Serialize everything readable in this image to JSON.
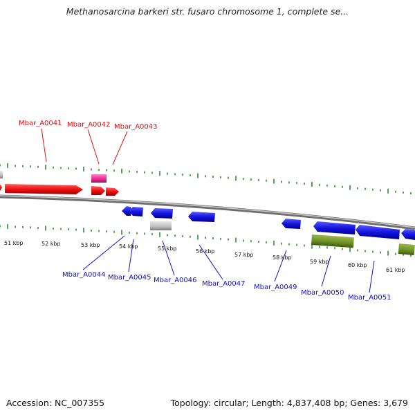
{
  "title": "Methanosarcina barkeri str. fusaro chromosome 1, complete se...",
  "accession": "Accession: NC_007355",
  "summary": "Topology: circular; Length: 4,837,408 bp; Genes: 3,679",
  "scale_labels": [
    "51 kbp",
    "52 kbp",
    "53 kbp",
    "54 kbp",
    "55 kbp",
    "56 kbp",
    "57 kbp",
    "58 kbp",
    "59 kbp",
    "60 kbp",
    "61 kbp"
  ],
  "genes_top": [
    {
      "name": "Mbar_A0041",
      "color": "#e01010"
    },
    {
      "name": "Mbar_A0042",
      "color": "#e01010"
    },
    {
      "name": "Mbar_A0043",
      "color": "#e01010"
    }
  ],
  "genes_bottom": [
    {
      "name": "Mbar_A0044",
      "color": "#1010c8"
    },
    {
      "name": "Mbar_A0045",
      "color": "#1010c8"
    },
    {
      "name": "Mbar_A0046",
      "color": "#1010c8"
    },
    {
      "name": "Mbar_A0047",
      "color": "#1010c8"
    },
    {
      "name": "Mbar_A0049",
      "color": "#1010c8"
    },
    {
      "name": "Mbar_A0050",
      "color": "#1010c8"
    },
    {
      "name": "Mbar_A0051",
      "color": "#1010c8"
    }
  ],
  "colors": {
    "backbone": "#8a8a8a",
    "tick": "#1a8a1a",
    "forward_gene": "#ee1111",
    "reverse_gene": "#1515e0",
    "rna_gene": "#ee3399",
    "other_gene": "#bbbbbb",
    "olive_gene": "#6b8e23"
  }
}
